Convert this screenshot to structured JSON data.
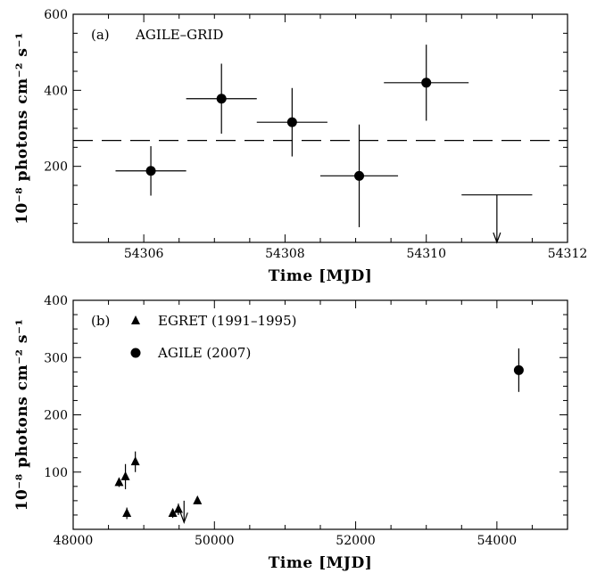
{
  "chart_data": [
    {
      "type": "scatter",
      "panel_label": "(a)",
      "annotation": "AGILE–GRID",
      "xlabel": "Time [MJD]",
      "ylabel": "10⁻⁸ photons cm⁻² s⁻¹",
      "xlim": [
        54305,
        54312
      ],
      "ylim": [
        0,
        600
      ],
      "xticks": [
        54306,
        54308,
        54310,
        54312
      ],
      "yticks": [
        200,
        400,
        600
      ],
      "reference_line": {
        "y": 268,
        "style": "dashed"
      },
      "series": [
        {
          "marker": "circle",
          "points": [
            {
              "x": 54306.1,
              "y": 188,
              "xerr": 0.5,
              "yerr_low": 65,
              "yerr_high": 65
            },
            {
              "x": 54307.1,
              "y": 378,
              "xerr": 0.5,
              "yerr_low": 92,
              "yerr_high": 92
            },
            {
              "x": 54308.1,
              "y": 316,
              "xerr": 0.5,
              "yerr_low": 90,
              "yerr_high": 90
            },
            {
              "x": 54309.05,
              "y": 175,
              "xerr": 0.55,
              "yerr_low": 135,
              "yerr_high": 135
            },
            {
              "x": 54310.0,
              "y": 420,
              "xerr": 0.6,
              "yerr_low": 100,
              "yerr_high": 100
            }
          ]
        }
      ],
      "upper_limits": [
        {
          "x": 54311.0,
          "y": 125,
          "xerr": 0.5,
          "arrow_to": 0
        }
      ]
    },
    {
      "type": "scatter",
      "panel_label": "(b)",
      "xlabel": "Time [MJD]",
      "ylabel": "10⁻⁸ photons cm⁻² s⁻¹",
      "xlim": [
        48000,
        55000
      ],
      "ylim": [
        0,
        400
      ],
      "xticks": [
        48000,
        50000,
        52000,
        54000
      ],
      "yticks": [
        100,
        200,
        300,
        400
      ],
      "legend": {
        "placement": "top-left"
      },
      "series": [
        {
          "name": "EGRET (1991–1995)",
          "marker": "triangle",
          "points": [
            {
              "x": 48650,
              "y": 82,
              "yerr": 8
            },
            {
              "x": 48740,
              "y": 92,
              "yerr": 22
            },
            {
              "x": 48880,
              "y": 118,
              "yerr": 18
            },
            {
              "x": 48760,
              "y": 28,
              "yerr": 10
            },
            {
              "x": 49410,
              "y": 28,
              "yerr": 8
            },
            {
              "x": 49490,
              "y": 35,
              "yerr": 10
            },
            {
              "x": 49760,
              "y": 50,
              "yerr": 6
            }
          ]
        },
        {
          "name": "AGILE (2007)",
          "marker": "circle",
          "points": [
            {
              "x": 54310,
              "y": 278,
              "yerr": 38
            }
          ]
        }
      ],
      "upper_limits": [
        {
          "x": 49570,
          "y": 50,
          "arrow_to": 12
        }
      ]
    }
  ]
}
